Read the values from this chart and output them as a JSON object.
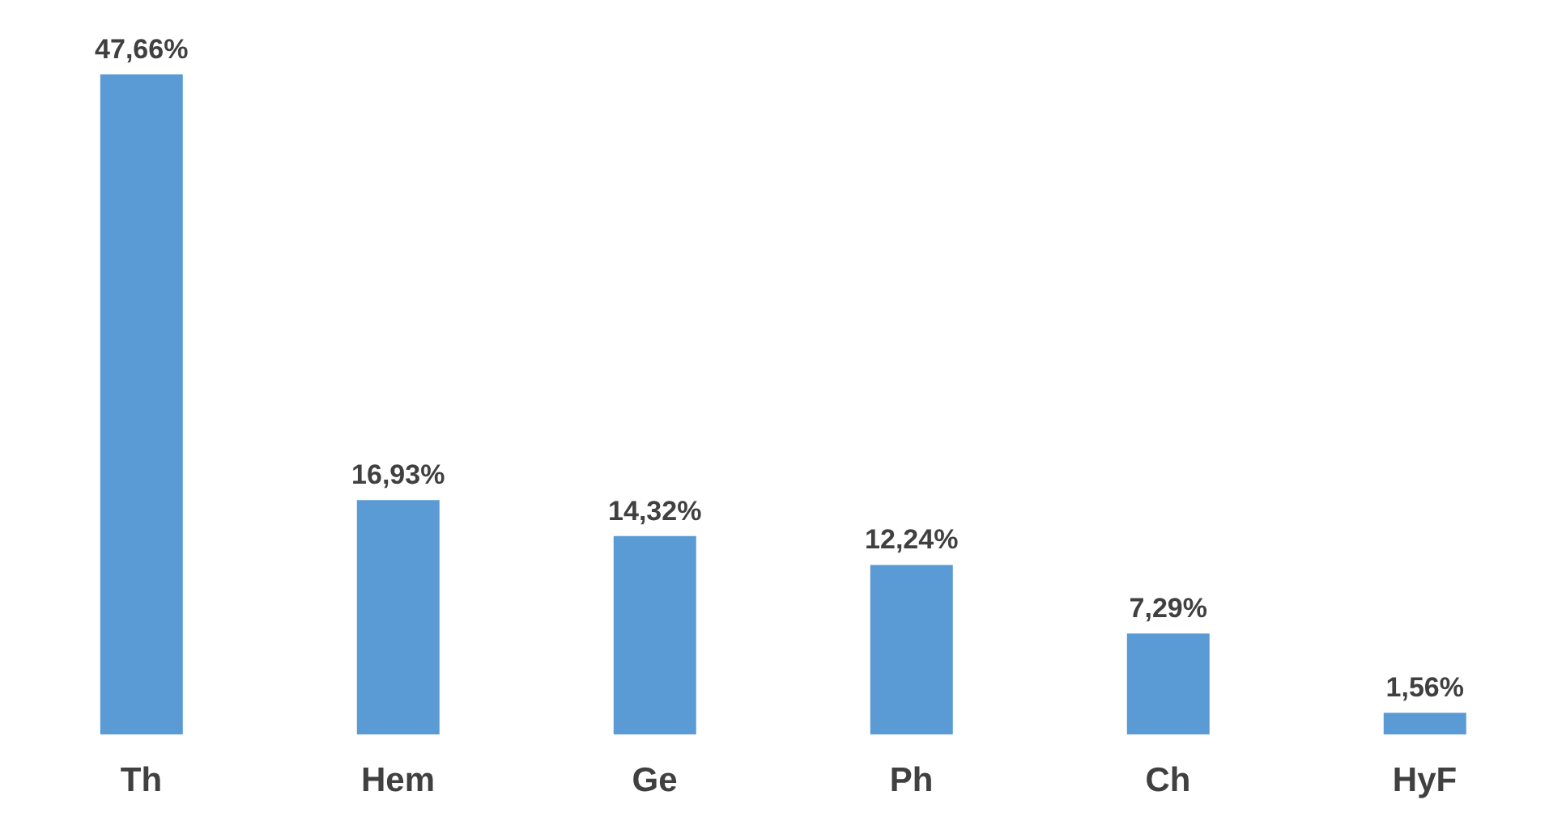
{
  "chart_data": {
    "type": "bar",
    "categories": [
      "Th",
      "Hem",
      "Ge",
      "Ph",
      "Ch",
      "HyF"
    ],
    "values": [
      47.66,
      16.93,
      14.32,
      12.24,
      7.29,
      1.56
    ],
    "value_labels": [
      "47,66%",
      "16,93%",
      "14,32%",
      "12,24%",
      "7,29%",
      "1,56%"
    ],
    "color": "#5b9bd5"
  }
}
